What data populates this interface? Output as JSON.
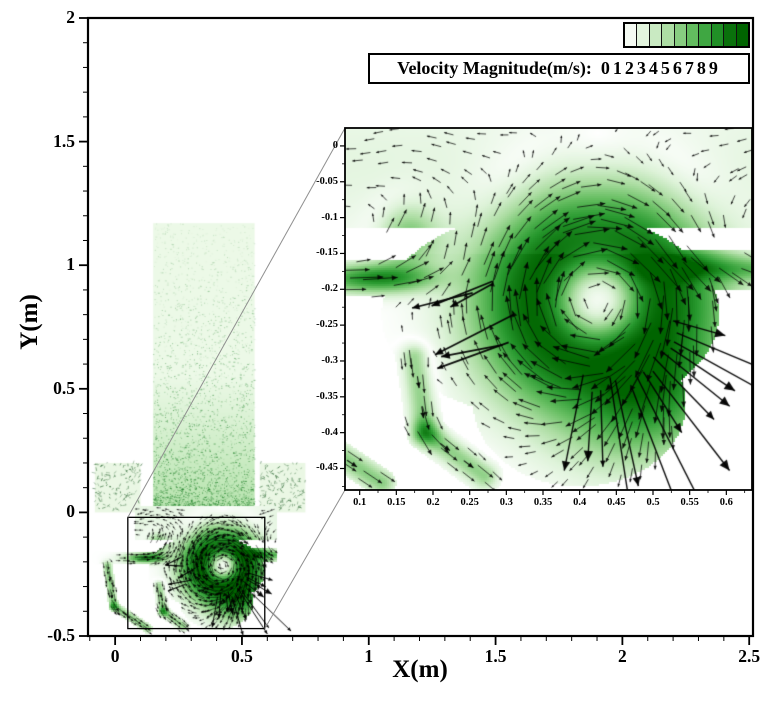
{
  "legend": {
    "label": "Velocity Magnitude(m/s):",
    "values": "0123456789"
  },
  "main_axes": {
    "xlabel": "X(m)",
    "ylabel": "Y(m)",
    "xlim": [
      -0.107,
      2.515
    ],
    "ylim": [
      -0.5,
      2.0
    ],
    "xtick_vals": [
      0,
      0.5,
      1,
      1.5,
      2,
      2.5
    ],
    "xtick_labels": [
      "0",
      "0.5",
      "1",
      "1.5",
      "2",
      "2.5"
    ],
    "ytick_vals": [
      -0.5,
      0,
      0.5,
      1,
      1.5,
      2
    ],
    "ytick_labels": [
      "-0.5",
      "0",
      "0.5",
      "1",
      "1.5",
      "2"
    ],
    "minor_step": 0.1
  },
  "inset_axes": {
    "xlim": [
      0.08,
      0.635
    ],
    "ylim": [
      -0.48,
      0.025
    ],
    "xtick_vals": [
      0.1,
      0.15,
      0.2,
      0.25,
      0.3,
      0.35,
      0.4,
      0.45,
      0.5,
      0.55,
      0.6
    ],
    "xtick_labels": [
      "0.1",
      "0.15",
      "0.2",
      "0.25",
      "0.3",
      "0.35",
      "0.4",
      "0.45",
      "0.5",
      "0.55",
      "0.6"
    ],
    "ytick_vals": [
      0,
      -0.05,
      -0.1,
      -0.15,
      -0.2,
      -0.25,
      -0.3,
      -0.35,
      -0.4,
      -0.45
    ],
    "ytick_labels": [
      "0",
      "-0.05",
      "-0.1",
      "-0.15",
      "-0.2",
      "-0.25",
      "-0.3",
      "-0.35",
      "-0.4",
      "-0.45"
    ],
    "minor_step": 0.025
  },
  "chart_data": {
    "type": "heatmap",
    "title": "Velocity Magnitude(m/s)",
    "units": "m/s",
    "levels": [
      0,
      1,
      2,
      3,
      4,
      5,
      6,
      7,
      8,
      9
    ],
    "colormap": [
      "#ffffff",
      "#def3d9",
      "#acdda2",
      "#68bf63",
      "#28992f",
      "#006400"
    ],
    "legend_position": "top-right",
    "main_view": {
      "xlabel": "X(m)",
      "ylabel": "Y(m)",
      "xlim": [
        -0.107,
        2.515
      ],
      "ylim": [
        -0.5,
        2.0
      ]
    },
    "inset_view": {
      "xlim": [
        0.08,
        0.635
      ],
      "ylim": [
        -0.48,
        0.025
      ]
    },
    "features": {
      "vortex_center": [
        0.425,
        -0.215
      ],
      "vortex_peak_radius": 0.085,
      "inlet_jet": {
        "x": [
          0.08,
          0.18
        ],
        "channel_y": [
          -0.21,
          -0.16
        ],
        "direction": "+x",
        "approx_speed": 8
      },
      "outlet_channel": {
        "x": [
          0.48,
          0.635
        ],
        "y": [
          -0.2,
          -0.145
        ],
        "direction": "+x",
        "approx_speed": 5
      },
      "outflow_fan_direction_deg": -63,
      "top_region_speed": 1.5
    },
    "geometry": {
      "column": {
        "x": [
          0.15,
          0.55
        ],
        "y": [
          0.02,
          1.17
        ]
      },
      "left_box": {
        "x": [
          -0.08,
          0.1
        ],
        "y": [
          0.0,
          0.2
        ]
      },
      "right_box": {
        "x": [
          0.57,
          0.75
        ],
        "y": [
          0.0,
          0.2
        ]
      },
      "cavity_top_band": {
        "x": [
          0.08,
          0.635
        ],
        "y": [
          -0.115,
          0.025
        ]
      },
      "cavity_blob": {
        "cx": 0.36,
        "cy": -0.235,
        "rx": 0.23,
        "ry": 0.145
      },
      "cavity_bulge": {
        "cx": 0.4,
        "cy": -0.36,
        "rx": 0.145,
        "ry": 0.115
      },
      "drain_tube": {
        "pts": [
          [
            0.175,
            -0.295
          ],
          [
            0.19,
            -0.4
          ],
          [
            0.27,
            -0.46
          ]
        ],
        "halfwidth": 0.026
      },
      "return_duct": {
        "pts": [
          [
            -0.03,
            -0.215
          ],
          [
            -0.005,
            -0.38
          ],
          [
            0.13,
            -0.47
          ]
        ],
        "halfwidth": 0.02
      },
      "left_stub": {
        "x": [
          -0.09,
          0.18
        ],
        "y": [
          -0.21,
          -0.16
        ]
      },
      "zoom_rect": {
        "x": [
          0.05,
          0.59
        ],
        "y": [
          -0.47,
          -0.02
        ]
      }
    }
  }
}
